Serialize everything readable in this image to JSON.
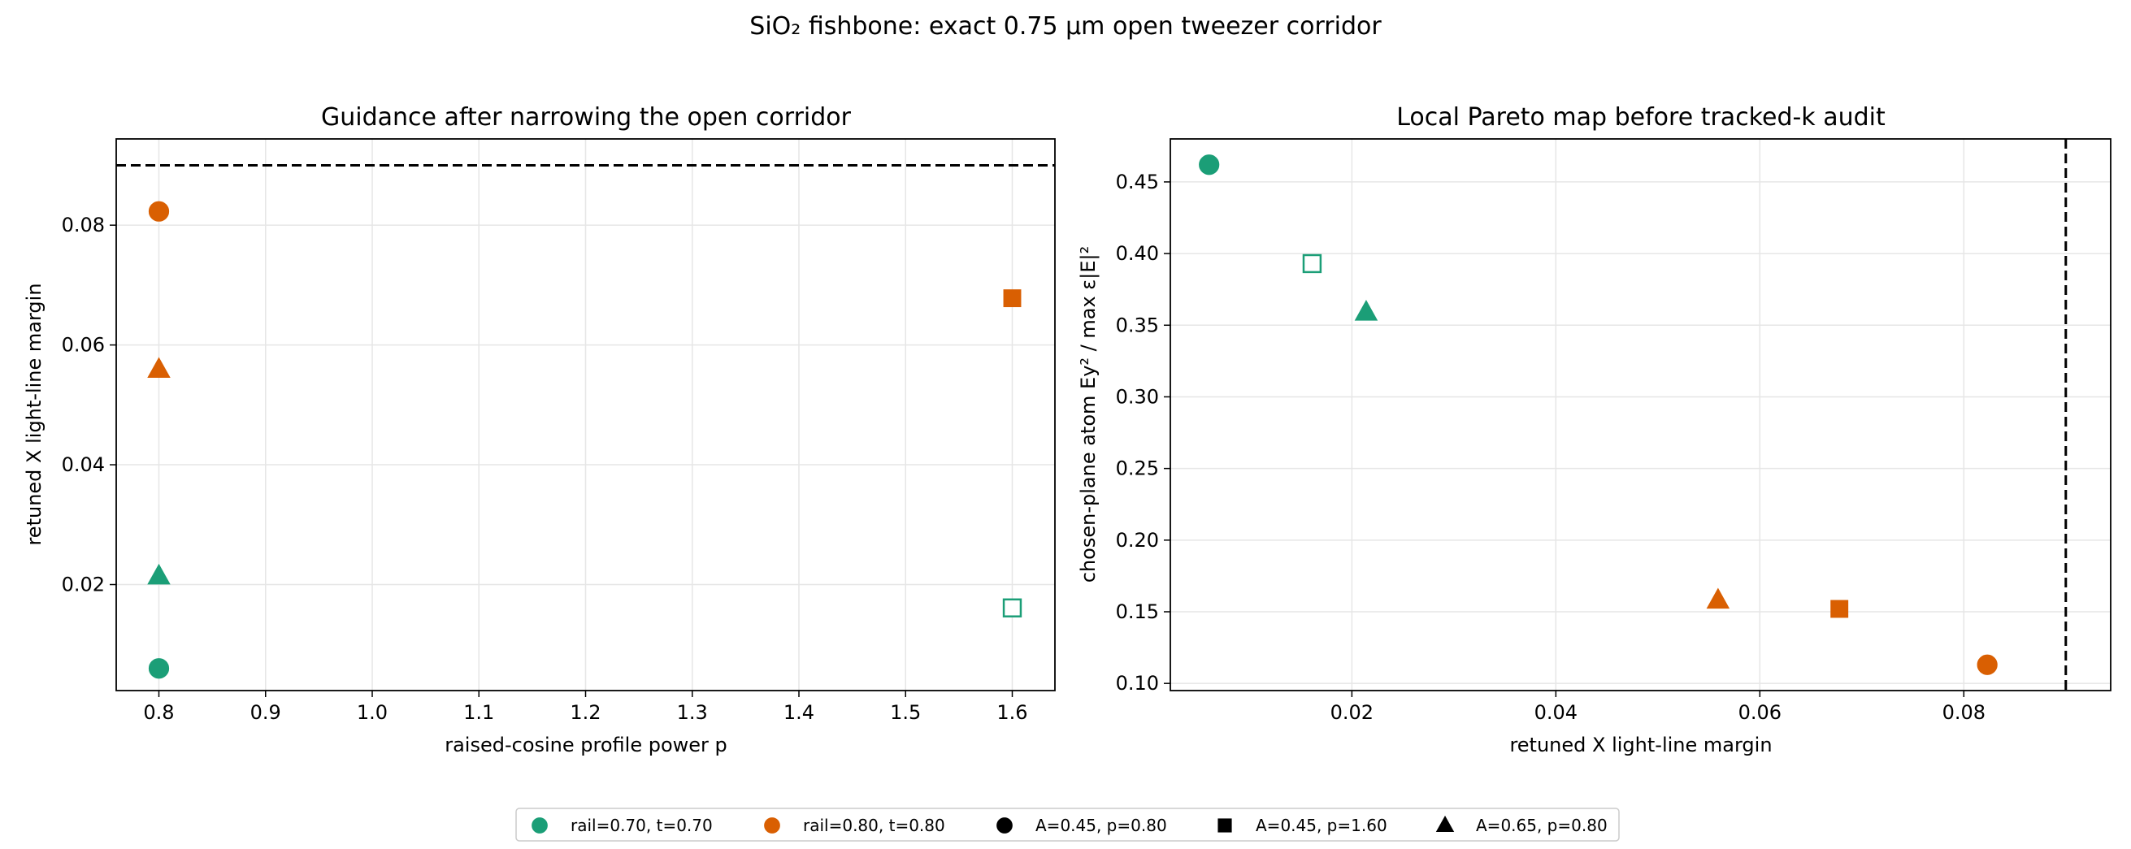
{
  "figure": {
    "suptitle": "SiO₂ fishbone: exact 0.75 µm open tweezer corridor"
  },
  "colors": {
    "teal": "#1b9e77",
    "orange": "#d95f02",
    "grid": "#e6e6e6",
    "axis": "#000000"
  },
  "legend": {
    "entries": [
      {
        "label": "rail=0.70, t=0.70",
        "marker": "circle",
        "color": "#1b9e77"
      },
      {
        "label": "rail=0.80, t=0.80",
        "marker": "circle",
        "color": "#d95f02"
      },
      {
        "label": "A=0.45, p=0.80",
        "marker": "circle",
        "color": "#000000"
      },
      {
        "label": "A=0.45, p=1.60",
        "marker": "square",
        "color": "#000000"
      },
      {
        "label": "A=0.65, p=0.80",
        "marker": "triangle",
        "color": "#000000"
      }
    ]
  },
  "chart_data": [
    {
      "type": "scatter",
      "title": "Guidance after narrowing the open corridor",
      "xlabel": "raised-cosine profile power p",
      "ylabel": "retuned X light-line margin",
      "xlim": [
        0.76,
        1.64
      ],
      "ylim": [
        0.0023,
        0.0944
      ],
      "xticks": [
        0.8,
        0.9,
        1.0,
        1.1,
        1.2,
        1.3,
        1.4,
        1.5,
        1.6
      ],
      "xtick_labels": [
        "0.8",
        "0.9",
        "1.0",
        "1.1",
        "1.2",
        "1.3",
        "1.4",
        "1.5",
        "1.6"
      ],
      "yticks": [
        0.02,
        0.04,
        0.06,
        0.08
      ],
      "ytick_labels": [
        "0.02",
        "0.04",
        "0.06",
        "0.08"
      ],
      "grid": true,
      "hline": 0.09,
      "points": [
        {
          "x": 0.8,
          "y": 0.0823,
          "marker": "circle",
          "color": "#d95f02",
          "filled": true
        },
        {
          "x": 0.8,
          "y": 0.0559,
          "marker": "triangle",
          "color": "#d95f02",
          "filled": true
        },
        {
          "x": 0.8,
          "y": 0.0214,
          "marker": "triangle",
          "color": "#1b9e77",
          "filled": true
        },
        {
          "x": 0.8,
          "y": 0.006,
          "marker": "circle",
          "color": "#1b9e77",
          "filled": true
        },
        {
          "x": 1.6,
          "y": 0.0678,
          "marker": "square",
          "color": "#d95f02",
          "filled": true
        },
        {
          "x": 1.6,
          "y": 0.0161,
          "marker": "square",
          "color": "#1b9e77",
          "filled": false
        }
      ]
    },
    {
      "type": "scatter",
      "title": "Local Pareto map before tracked-k audit",
      "xlabel": "retuned X light-line margin",
      "ylabel": "chosen-plane atom Ey² / max ε|E|²",
      "xlim": [
        0.0022,
        0.0944
      ],
      "ylim": [
        0.095,
        0.48
      ],
      "xticks": [
        0.02,
        0.04,
        0.06,
        0.08
      ],
      "xtick_labels": [
        "0.02",
        "0.04",
        "0.06",
        "0.08"
      ],
      "yticks": [
        0.1,
        0.15,
        0.2,
        0.25,
        0.3,
        0.35,
        0.4,
        0.45
      ],
      "ytick_labels": [
        "0.10",
        "0.15",
        "0.20",
        "0.25",
        "0.30",
        "0.35",
        "0.40",
        "0.45"
      ],
      "grid": true,
      "vline": 0.09,
      "points": [
        {
          "x": 0.006,
          "y": 0.462,
          "marker": "circle",
          "color": "#1b9e77",
          "filled": true
        },
        {
          "x": 0.0161,
          "y": 0.393,
          "marker": "square",
          "color": "#1b9e77",
          "filled": false
        },
        {
          "x": 0.0214,
          "y": 0.359,
          "marker": "triangle",
          "color": "#1b9e77",
          "filled": true
        },
        {
          "x": 0.0559,
          "y": 0.158,
          "marker": "triangle",
          "color": "#d95f02",
          "filled": true
        },
        {
          "x": 0.0678,
          "y": 0.152,
          "marker": "square",
          "color": "#d95f02",
          "filled": true
        },
        {
          "x": 0.0823,
          "y": 0.113,
          "marker": "circle",
          "color": "#d95f02",
          "filled": true
        }
      ]
    }
  ]
}
